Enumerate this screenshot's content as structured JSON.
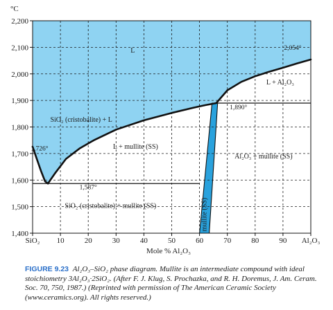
{
  "chart_data": {
    "type": "area",
    "title": "",
    "ylabel": "°C",
    "xlabel": "Mole % Al₂O₃",
    "xlim": [
      0,
      100
    ],
    "ylim": [
      1400,
      2200
    ],
    "x_ticks": [
      {
        "value": 0,
        "label": "SiO₂"
      },
      {
        "value": 10,
        "label": "10"
      },
      {
        "value": 20,
        "label": "20"
      },
      {
        "value": 30,
        "label": "30"
      },
      {
        "value": 40,
        "label": "40"
      },
      {
        "value": 50,
        "label": "50"
      },
      {
        "value": 60,
        "label": "60"
      },
      {
        "value": 70,
        "label": "70"
      },
      {
        "value": 80,
        "label": "80"
      },
      {
        "value": 90,
        "label": "90"
      },
      {
        "value": 100,
        "label": "Al₂O₃"
      }
    ],
    "y_ticks": [
      {
        "value": 1400,
        "label": "1,400"
      },
      {
        "value": 1500,
        "label": "1,500"
      },
      {
        "value": 1600,
        "label": "1,600"
      },
      {
        "value": 1700,
        "label": "1,700"
      },
      {
        "value": 1800,
        "label": "1,800"
      },
      {
        "value": 1900,
        "label": "1,900"
      },
      {
        "value": 2000,
        "label": "2,000"
      },
      {
        "value": 2100,
        "label": "2,100"
      },
      {
        "value": 2200,
        "label": "2,200"
      }
    ],
    "grid": true,
    "series": [
      {
        "id": "liquidus-sio2",
        "points": [
          [
            0,
            1726
          ],
          [
            1.5,
            1680
          ],
          [
            3,
            1635
          ],
          [
            4.5,
            1595
          ],
          [
            5.5,
            1587
          ]
        ]
      },
      {
        "id": "liquidus-mullite",
        "points": [
          [
            5.5,
            1587
          ],
          [
            8,
            1625
          ],
          [
            12,
            1680
          ],
          [
            17,
            1720
          ],
          [
            22,
            1750
          ],
          [
            30,
            1790
          ],
          [
            40,
            1825
          ],
          [
            50,
            1853
          ],
          [
            58,
            1873
          ],
          [
            62,
            1882
          ],
          [
            66,
            1890
          ]
        ]
      },
      {
        "id": "liquidus-alumina",
        "points": [
          [
            66,
            1890
          ],
          [
            70,
            1938
          ],
          [
            75,
            1970
          ],
          [
            80,
            1991
          ],
          [
            85,
            2008
          ],
          [
            90,
            2023
          ],
          [
            95,
            2039
          ],
          [
            100,
            2054
          ]
        ]
      }
    ],
    "mullite_field": {
      "left_top": 64.5,
      "left_bottom": 60,
      "right_top": 66.5,
      "right_bottom": 63.5,
      "top": 1890,
      "bottom": 1400
    },
    "isotherms": [
      {
        "value": 1587,
        "x_from": 0,
        "x_to": 60
      },
      {
        "value": 1890,
        "x_from": 66,
        "x_to": 100
      }
    ],
    "annotations": [
      {
        "text": "2,054°",
        "x": 93.5,
        "y": 2090
      },
      {
        "text": "1,890°",
        "x": 74,
        "y": 1866
      },
      {
        "text": "1,726°",
        "x": 2.5,
        "y": 1712
      },
      {
        "text": "1,587°",
        "x": 20,
        "y": 1565
      }
    ],
    "regions": [
      {
        "text": "L",
        "x": 36,
        "y": 2080
      },
      {
        "text": "L + Al₂O₃",
        "x": 89,
        "y": 1960
      },
      {
        "text": "SiO₂ (cristobalite) + L",
        "x": 17.5,
        "y": 1820
      },
      {
        "text": "L + mullite (SS)",
        "x": 37,
        "y": 1718
      },
      {
        "text": "Al₂O₃ + mullite (SS)",
        "x": 83,
        "y": 1682
      },
      {
        "text": "SiO₂ (cristobalite) + mullite (SS)",
        "x": 28,
        "y": 1495
      }
    ],
    "field_label": {
      "text": "mullite (SS)",
      "x": 62.5,
      "y": 1470
    },
    "colors": {
      "liquid": "#8fd3f2",
      "mullite": "#2aa2dd",
      "curve": "#111111",
      "grid": "#1a1a1a"
    }
  },
  "caption": {
    "figure_number": "FIGURE 9.23",
    "text": "Al₂O₃–SiO₂ phase diagram. Mullite is an intermediate compound with ideal stoichiometry 3Al₂O₃·2SiO₂. (After F. J. Klug, S. Prochazka, and R. H. Doremus, J. Am. Ceram. Soc. 70, 750, 1987.) (Reprinted with permission of The American Ceramic Society (www.ceramics.org). All rights reserved.)"
  }
}
